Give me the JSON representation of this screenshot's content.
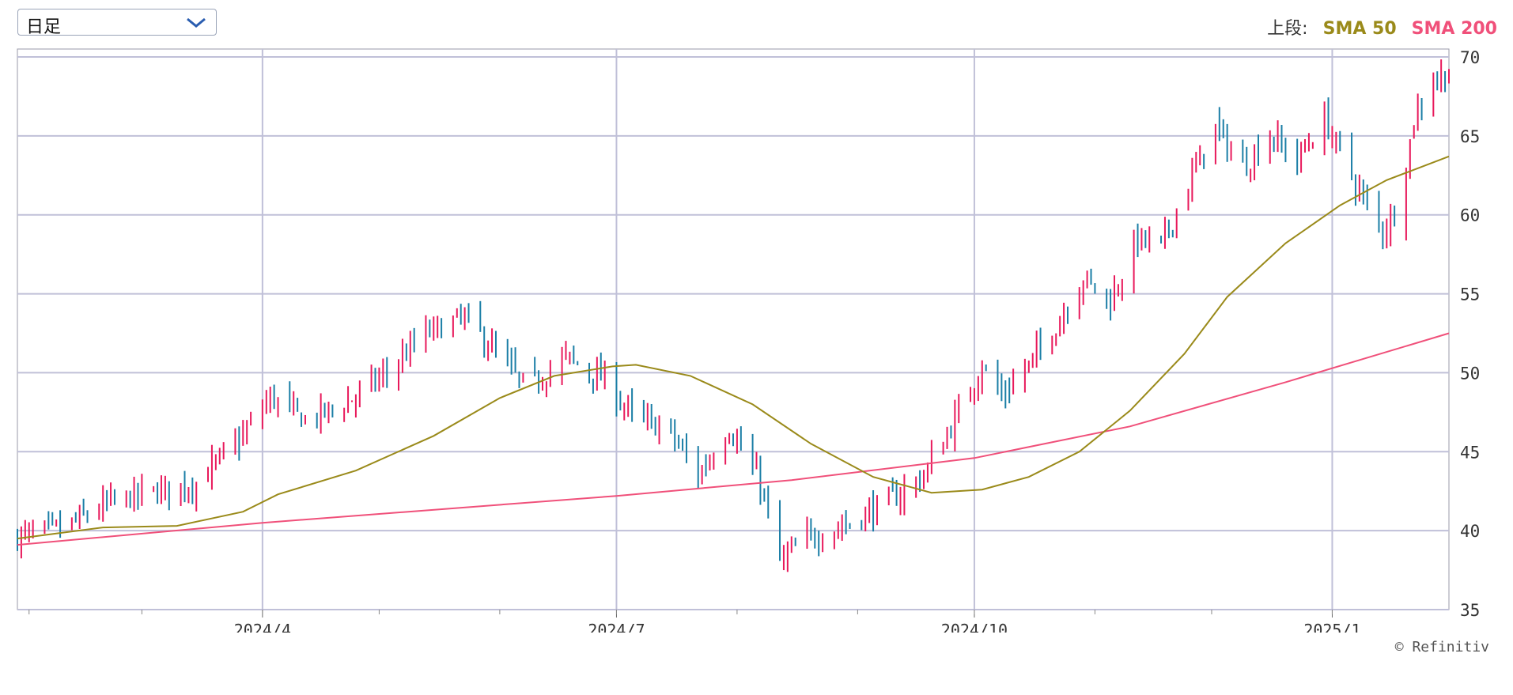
{
  "controls": {
    "period": {
      "selected": "日足"
    }
  },
  "legend": {
    "prefix": "上段:",
    "items": [
      {
        "label": "SMA 50",
        "color": "#9a8a1a"
      },
      {
        "label": "SMA 200",
        "color": "#f0507a"
      }
    ]
  },
  "credit": "© Refinitiv",
  "colors": {
    "up": "#e8195b",
    "down": "#1a7ea6",
    "sma50": "#9a8a1a",
    "sma200": "#f0507a",
    "grid": "#c0c0d8"
  },
  "chart_data": {
    "type": "candlestick",
    "xlabels": [
      {
        "label": "2024/4",
        "date": "2024-04-01"
      },
      {
        "label": "2024/7",
        "date": "2024-07-01"
      },
      {
        "label": "2024/10",
        "date": "2024-10-01"
      },
      {
        "label": "2025/1",
        "date": "2025-01-01"
      }
    ],
    "x_range": [
      "2024-01-29",
      "2025-01-31"
    ],
    "yticks": [
      35,
      40,
      45,
      50,
      55,
      60,
      65,
      70
    ],
    "ylim": [
      35,
      70.5
    ],
    "grid": true,
    "price_points": [
      [
        "2024-01-29",
        39.6
      ],
      [
        "2024-02-10",
        40.2
      ],
      [
        "2024-02-22",
        41.8
      ],
      [
        "2024-03-05",
        42.5
      ],
      [
        "2024-03-15",
        43.0
      ],
      [
        "2024-03-27",
        46.0
      ],
      [
        "2024-04-03",
        48.5
      ],
      [
        "2024-04-12",
        47.0
      ],
      [
        "2024-04-22",
        48.0
      ],
      [
        "2024-05-03",
        50.0
      ],
      [
        "2024-05-13",
        52.5
      ],
      [
        "2024-05-23",
        53.5
      ],
      [
        "2024-06-01",
        51.0
      ],
      [
        "2024-06-08",
        49.0
      ],
      [
        "2024-06-18",
        51.0
      ],
      [
        "2024-06-28",
        49.5
      ],
      [
        "2024-07-06",
        47.0
      ],
      [
        "2024-07-14",
        46.5
      ],
      [
        "2024-07-22",
        43.5
      ],
      [
        "2024-07-30",
        46.5
      ],
      [
        "2024-08-07",
        43.0
      ],
      [
        "2024-08-12",
        38.0
      ],
      [
        "2024-08-19",
        39.5
      ],
      [
        "2024-08-30",
        40.5
      ],
      [
        "2024-09-10",
        42.0
      ],
      [
        "2024-09-18",
        43.5
      ],
      [
        "2024-09-26",
        47.0
      ],
      [
        "2024-10-03",
        50.5
      ],
      [
        "2024-10-08",
        48.5
      ],
      [
        "2024-10-15",
        50.5
      ],
      [
        "2024-10-22",
        53.0
      ],
      [
        "2024-10-29",
        56.0
      ],
      [
        "2024-11-05",
        54.5
      ],
      [
        "2024-11-12",
        58.5
      ],
      [
        "2024-11-18",
        58.0
      ],
      [
        "2024-11-25",
        62.0
      ],
      [
        "2024-12-02",
        65.5
      ],
      [
        "2024-12-09",
        63.0
      ],
      [
        "2024-12-16",
        65.0
      ],
      [
        "2024-12-23",
        63.5
      ],
      [
        "2024-12-30",
        66.0
      ],
      [
        "2025-01-04",
        63.5
      ],
      [
        "2025-01-09",
        61.0
      ],
      [
        "2025-01-14",
        59.0
      ],
      [
        "2025-01-18",
        60.5
      ],
      [
        "2025-01-22",
        66.0
      ],
      [
        "2025-01-26",
        68.5
      ],
      [
        "2025-01-31",
        69.0
      ]
    ],
    "sma50": [
      [
        "2024-01-29",
        39.5
      ],
      [
        "2024-02-20",
        40.2
      ],
      [
        "2024-03-10",
        40.3
      ],
      [
        "2024-03-27",
        41.2
      ],
      [
        "2024-04-05",
        42.3
      ],
      [
        "2024-04-25",
        43.8
      ],
      [
        "2024-05-15",
        46.0
      ],
      [
        "2024-06-01",
        48.4
      ],
      [
        "2024-06-15",
        49.8
      ],
      [
        "2024-06-30",
        50.4
      ],
      [
        "2024-07-06",
        50.5
      ],
      [
        "2024-07-20",
        49.8
      ],
      [
        "2024-08-05",
        48.0
      ],
      [
        "2024-08-20",
        45.5
      ],
      [
        "2024-09-05",
        43.4
      ],
      [
        "2024-09-20",
        42.4
      ],
      [
        "2024-10-03",
        42.6
      ],
      [
        "2024-10-15",
        43.4
      ],
      [
        "2024-10-28",
        45.0
      ],
      [
        "2024-11-10",
        47.6
      ],
      [
        "2024-11-24",
        51.2
      ],
      [
        "2024-12-05",
        54.8
      ],
      [
        "2024-12-20",
        58.2
      ],
      [
        "2025-01-03",
        60.6
      ],
      [
        "2025-01-15",
        62.2
      ],
      [
        "2025-01-31",
        63.7
      ]
    ],
    "sma200": [
      [
        "2024-01-29",
        39.1
      ],
      [
        "2024-04-01",
        40.5
      ],
      [
        "2024-07-01",
        42.2
      ],
      [
        "2024-08-15",
        43.2
      ],
      [
        "2024-10-01",
        44.6
      ],
      [
        "2024-11-10",
        46.6
      ],
      [
        "2024-12-20",
        49.4
      ],
      [
        "2025-01-31",
        52.5
      ]
    ]
  }
}
